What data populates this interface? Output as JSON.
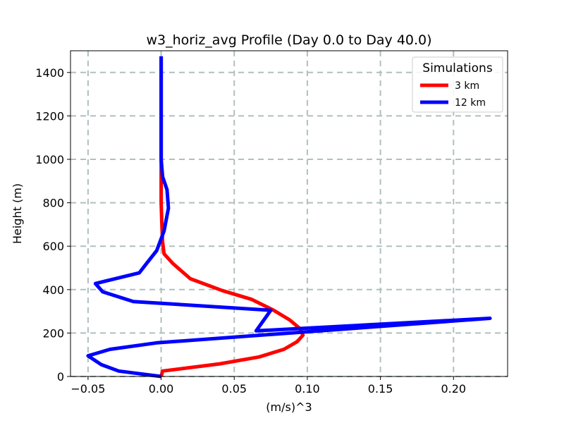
{
  "chart_data": {
    "type": "line",
    "title": "w3_horiz_avg Profile (Day 0.0 to Day 40.0)",
    "xlabel": "(m/s)^3",
    "ylabel": "Height (m)",
    "xlim": [
      -0.062,
      0.237
    ],
    "ylim": [
      0,
      1500
    ],
    "xticks": [
      -0.05,
      0.0,
      0.05,
      0.1,
      0.15,
      0.2
    ],
    "xtick_labels": [
      "−0.05",
      "0.00",
      "0.05",
      "0.10",
      "0.15",
      "0.20"
    ],
    "yticks": [
      0,
      200,
      400,
      600,
      800,
      1000,
      1200,
      1400
    ],
    "ytick_labels": [
      "0",
      "200",
      "400",
      "600",
      "800",
      "1000",
      "1200",
      "1400"
    ],
    "grid": true,
    "legend": {
      "title": "Simulations",
      "position": "top-right"
    },
    "series": [
      {
        "name": "3 km",
        "color": "#ff0000",
        "x": [
          0.0,
          0.001,
          0.04,
          0.067,
          0.084,
          0.093,
          0.097,
          0.095,
          0.088,
          0.077,
          0.062,
          0.042,
          0.02,
          0.008,
          0.002,
          0.001,
          0.0005,
          0.0,
          0.0,
          0.0,
          0.0,
          0.0
        ],
        "y": [
          0,
          25,
          58,
          90,
          125,
          160,
          190,
          220,
          260,
          305,
          355,
          395,
          450,
          520,
          565,
          620,
          700,
          800,
          900,
          1000,
          1200,
          1470
        ]
      },
      {
        "name": "12 km",
        "color": "#0000ff",
        "x": [
          0.0,
          -0.029,
          -0.041,
          -0.05,
          -0.035,
          -0.003,
          0.225,
          0.065,
          0.075,
          -0.019,
          -0.04,
          -0.045,
          -0.015,
          -0.01,
          -0.003,
          0.002,
          0.005,
          0.004,
          0.001,
          0.0,
          0.0,
          0.0
        ],
        "y": [
          0,
          25,
          55,
          95,
          125,
          155,
          268,
          210,
          305,
          345,
          390,
          428,
          477,
          520,
          580,
          670,
          775,
          860,
          920,
          1000,
          1200,
          1475
        ]
      }
    ]
  }
}
